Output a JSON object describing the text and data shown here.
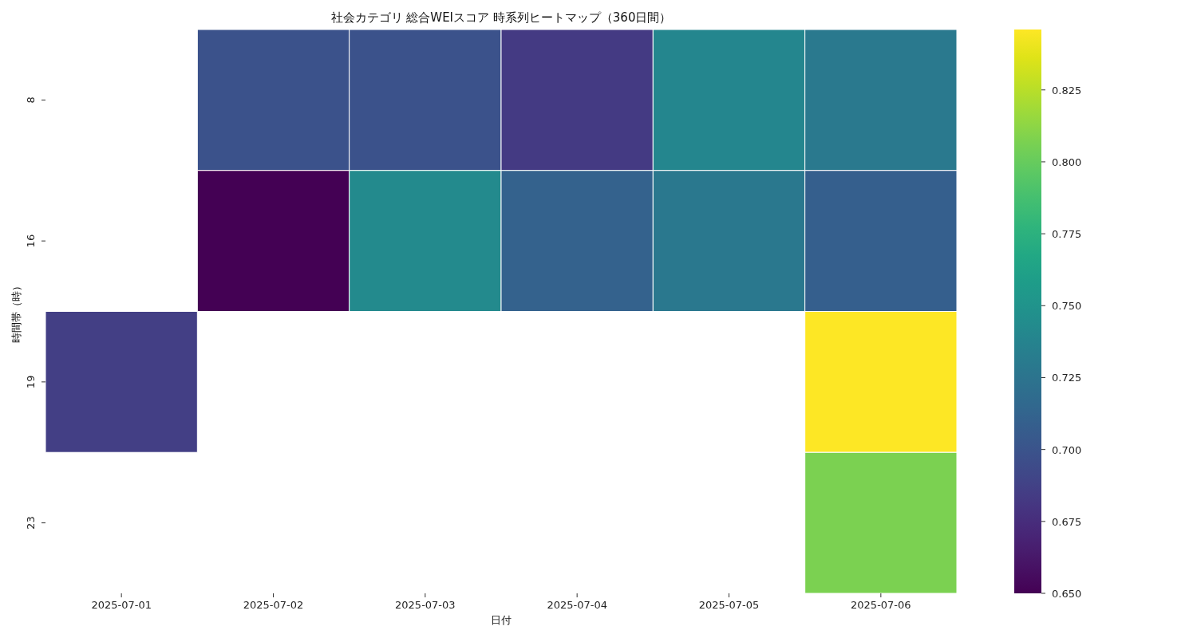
{
  "chart_data": {
    "type": "heatmap",
    "title": "社会カテゴリ 総合WEIスコア 時系列ヒートマップ（360日間）",
    "xlabel": "日付",
    "ylabel": "時間帯（時）",
    "categories": [
      "2025-07-01",
      "2025-07-02",
      "2025-07-03",
      "2025-07-04",
      "2025-07-05",
      "2025-07-06"
    ],
    "y_categories": [
      "8",
      "16",
      "19",
      "23"
    ],
    "cells": [
      [
        null,
        0.699,
        0.699,
        0.683,
        0.74,
        0.729
      ],
      [
        null,
        0.65,
        0.743,
        0.711,
        0.728,
        0.709
      ],
      [
        0.686,
        null,
        null,
        null,
        null,
        0.846
      ],
      [
        null,
        null,
        null,
        null,
        null,
        0.807
      ]
    ],
    "clim": [
      0.65,
      0.846
    ],
    "cticks": [
      {
        "value": 0.65,
        "label": "0.650"
      },
      {
        "value": 0.675,
        "label": "0.675"
      },
      {
        "value": 0.7,
        "label": "0.700"
      },
      {
        "value": 0.725,
        "label": "0.725"
      },
      {
        "value": 0.75,
        "label": "0.750"
      },
      {
        "value": 0.775,
        "label": "0.775"
      },
      {
        "value": 0.8,
        "label": "0.800"
      },
      {
        "value": 0.825,
        "label": "0.825"
      }
    ]
  }
}
